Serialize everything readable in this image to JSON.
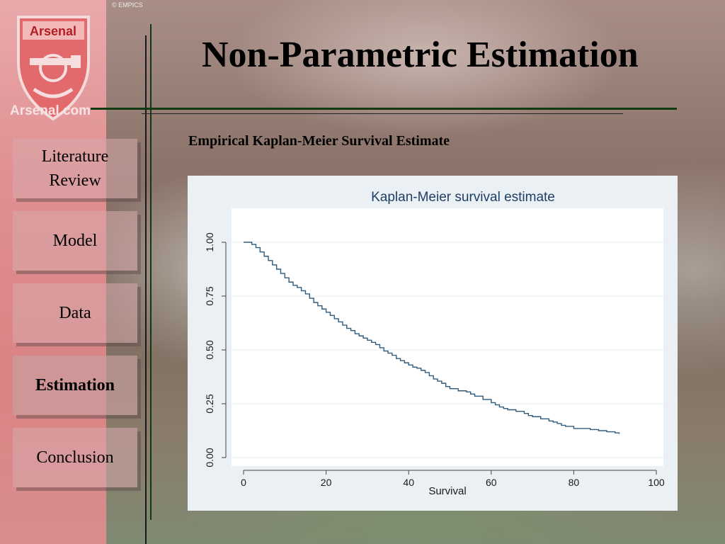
{
  "slide": {
    "title": "Non-Parametric Estimation",
    "subtitle": "Empirical Kaplan-Meier Survival Estimate",
    "logo_text": "Arsenal.com",
    "logo_badge_text": "Arsenal",
    "photo_credit": "© EMPICS"
  },
  "nav": {
    "items": [
      {
        "label": "Literature Review",
        "active": false
      },
      {
        "label": "Model",
        "active": false
      },
      {
        "label": "Data",
        "active": false
      },
      {
        "label": "Estimation",
        "active": true
      },
      {
        "label": "Conclusion",
        "active": false
      }
    ]
  },
  "colors": {
    "line": "#2f5b7d",
    "chart_bg": "#eaf0f4",
    "plot_bg": "#ffffff",
    "title_color": "#1f3f66"
  },
  "chart_data": {
    "type": "line",
    "step": true,
    "title": "Kaplan-Meier survival estimate",
    "xlabel": "Survival",
    "ylabel": "",
    "xlim": [
      0,
      100
    ],
    "ylim": [
      0,
      1
    ],
    "xticks": [
      0,
      20,
      40,
      60,
      80,
      100
    ],
    "yticks": [
      0,
      0.25,
      0.5,
      0.75,
      1
    ],
    "ytick_labels": [
      "0.00",
      "0.25",
      "0.50",
      "0.75",
      "1.00"
    ],
    "grid": true,
    "series": [
      {
        "x": [
          0,
          2,
          3,
          4,
          5,
          6,
          7,
          8,
          9,
          10,
          11,
          12,
          13,
          14,
          15,
          16,
          17,
          18,
          19,
          20,
          21,
          22,
          23,
          24,
          25,
          26,
          27,
          28,
          29,
          30,
          31,
          32,
          33,
          34,
          35,
          36,
          37,
          38,
          39,
          40,
          41,
          42,
          43,
          44,
          45,
          46,
          47,
          48,
          49,
          50,
          52,
          54,
          55,
          56,
          58,
          60,
          61,
          62,
          63,
          64,
          66,
          68,
          69,
          70,
          72,
          74,
          75,
          76,
          77,
          78,
          80,
          84,
          86,
          88,
          90,
          91
        ],
        "y": [
          1.0,
          0.99,
          0.975,
          0.955,
          0.935,
          0.915,
          0.895,
          0.875,
          0.855,
          0.835,
          0.815,
          0.8,
          0.79,
          0.775,
          0.76,
          0.74,
          0.72,
          0.705,
          0.69,
          0.675,
          0.66,
          0.645,
          0.63,
          0.615,
          0.6,
          0.59,
          0.575,
          0.565,
          0.555,
          0.545,
          0.535,
          0.525,
          0.51,
          0.495,
          0.485,
          0.475,
          0.46,
          0.45,
          0.44,
          0.43,
          0.42,
          0.415,
          0.405,
          0.395,
          0.38,
          0.365,
          0.355,
          0.345,
          0.33,
          0.32,
          0.31,
          0.305,
          0.295,
          0.285,
          0.27,
          0.255,
          0.245,
          0.235,
          0.228,
          0.222,
          0.215,
          0.205,
          0.195,
          0.19,
          0.18,
          0.17,
          0.165,
          0.158,
          0.15,
          0.145,
          0.135,
          0.13,
          0.125,
          0.12,
          0.115,
          0.11
        ]
      }
    ]
  }
}
